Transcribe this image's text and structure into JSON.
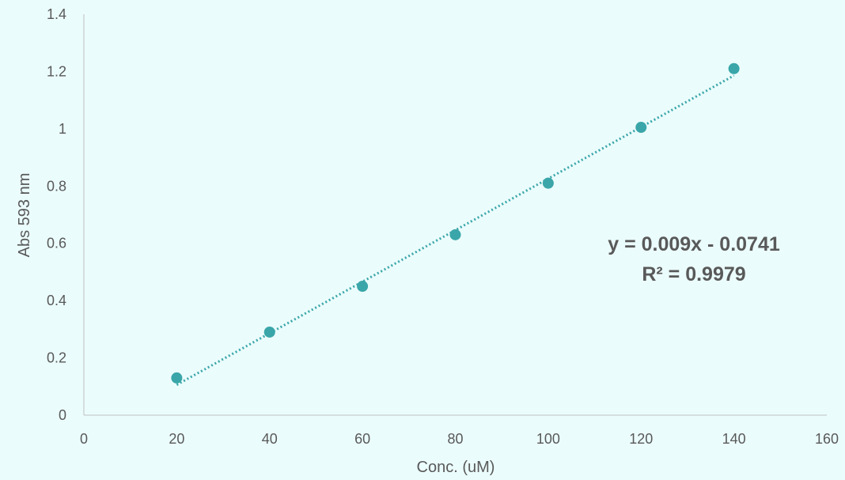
{
  "chart_data": {
    "type": "scatter",
    "title": "",
    "xlabel": "Conc. (uM)",
    "ylabel": "Abs 593 nm",
    "xlim": [
      0,
      160
    ],
    "ylim": [
      0,
      1.4
    ],
    "x_ticks": [
      "0",
      "20",
      "40",
      "60",
      "80",
      "100",
      "120",
      "140",
      "160"
    ],
    "y_ticks": [
      "0",
      "0.2",
      "0.4",
      "0.6",
      "0.8",
      "1",
      "1.2",
      "1.4"
    ],
    "grid": false,
    "legend": "none",
    "series": [
      {
        "x": [
          20,
          40,
          60,
          80,
          100,
          120,
          140
        ],
        "y": [
          0.13,
          0.29,
          0.45,
          0.63,
          0.81,
          1.005,
          1.21
        ],
        "color": "#3aa6a9"
      }
    ],
    "trendline": {
      "type": "linear",
      "slope": 0.009,
      "intercept": -0.0741,
      "style": "dotted",
      "color": "#3aa6a9"
    },
    "annotations": {
      "equation": "y = 0.009x - 0.0741",
      "r_squared": "R² = 0.9979"
    },
    "colors": {
      "background": "#ebfcfc",
      "marker": "#3aa6a9",
      "axis": "#bfbfbf",
      "text": "#595959"
    }
  }
}
